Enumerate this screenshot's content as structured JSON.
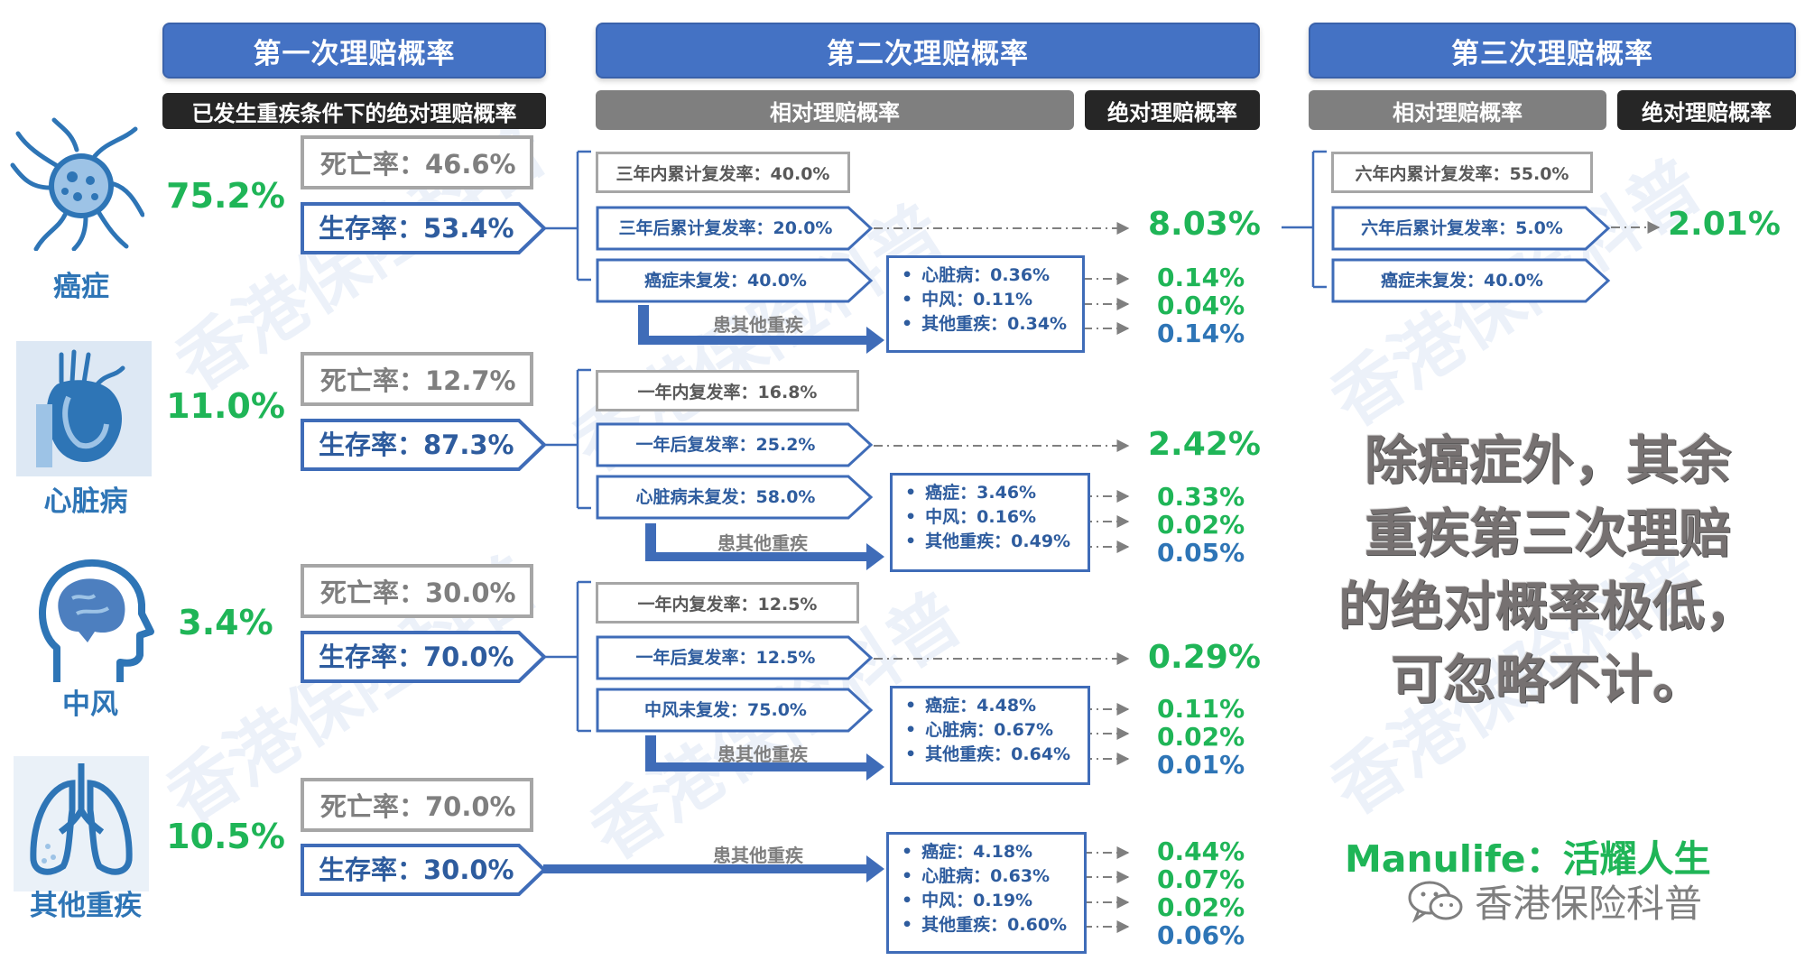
{
  "headers": {
    "first": "第一次理赔概率",
    "second": "第二次理赔概率",
    "third": "第三次理赔概率",
    "first_sub": "已发生重疾条件下的绝对理赔概率",
    "second_rel": "相对理赔概率",
    "second_abs": "绝对理赔概率",
    "third_rel": "相对理赔概率",
    "third_abs": "绝对理赔概率"
  },
  "diseases": [
    {
      "label": "癌症",
      "icon": "cancer-cell-icon",
      "first_prob": "75.2%",
      "death": "死亡率：46.6%",
      "survival": "生存率：53.4%",
      "second": {
        "r1": "三年内累计复发率：40.0%",
        "r2": "三年后累计复发率：20.0%",
        "r3": "癌症未复发：40.0%",
        "abs_main": "8.03%",
        "other_label": "患其他重疾",
        "others": [
          "心脏病：0.36%",
          "中风：0.11%",
          "其他重疾：0.34%"
        ],
        "others_abs": [
          "0.14%",
          "0.04%",
          "0.14%"
        ]
      }
    },
    {
      "label": "心脏病",
      "icon": "heart-icon",
      "first_prob": "11.0%",
      "death": "死亡率：12.7%",
      "survival": "生存率：87.3%",
      "second": {
        "r1": "一年内复发率：16.8%",
        "r2": "一年后复发率：25.2%",
        "r3": "心脏病未复发：58.0%",
        "abs_main": "2.42%",
        "other_label": "患其他重疾",
        "others": [
          "癌症：3.46%",
          "中风：0.16%",
          "其他重疾：0.49%"
        ],
        "others_abs": [
          "0.33%",
          "0.02%",
          "0.05%"
        ]
      }
    },
    {
      "label": "中风",
      "icon": "brain-head-icon",
      "first_prob": "3.4%",
      "death": "死亡率：30.0%",
      "survival": "生存率：70.0%",
      "second": {
        "r1": "一年内复发率：12.5%",
        "r2": "一年后复发率：12.5%",
        "r3": "中风未复发：75.0%",
        "abs_main": "0.29%",
        "other_label": "患其他重疾",
        "others": [
          "癌症：4.48%",
          "心脏病：0.67%",
          "其他重疾：0.64%"
        ],
        "others_abs": [
          "0.11%",
          "0.02%",
          "0.01%"
        ]
      }
    },
    {
      "label": "其他重疾",
      "icon": "lungs-icon",
      "first_prob": "10.5%",
      "death": "死亡率：70.0%",
      "survival": "生存率：30.0%",
      "second": {
        "other_label": "患其他重疾",
        "others": [
          "癌症：4.18%",
          "心脏病：0.63%",
          "中风：0.19%",
          "其他重疾：0.60%"
        ],
        "others_abs": [
          "0.44%",
          "0.07%",
          "0.02%",
          "0.06%"
        ]
      }
    }
  ],
  "third": {
    "r1": "六年内累计复发率：55.0%",
    "r2": "六年后累计复发率：5.0%",
    "r3": "癌症未复发：40.0%",
    "abs_main": "2.01%"
  },
  "note": [
    "除癌症外，其余",
    "重疾第三次理赔",
    "的绝对概率极低，",
    "可忽略不计。"
  ],
  "slogan": "Manulife：活耀人生",
  "brand": "香港保险科普",
  "watermark": "香港保险科普",
  "colors": {
    "blue": "#4472c4",
    "green": "#1fb557",
    "text_blue": "#2e5c9e",
    "gray": "#7f7f7f"
  }
}
